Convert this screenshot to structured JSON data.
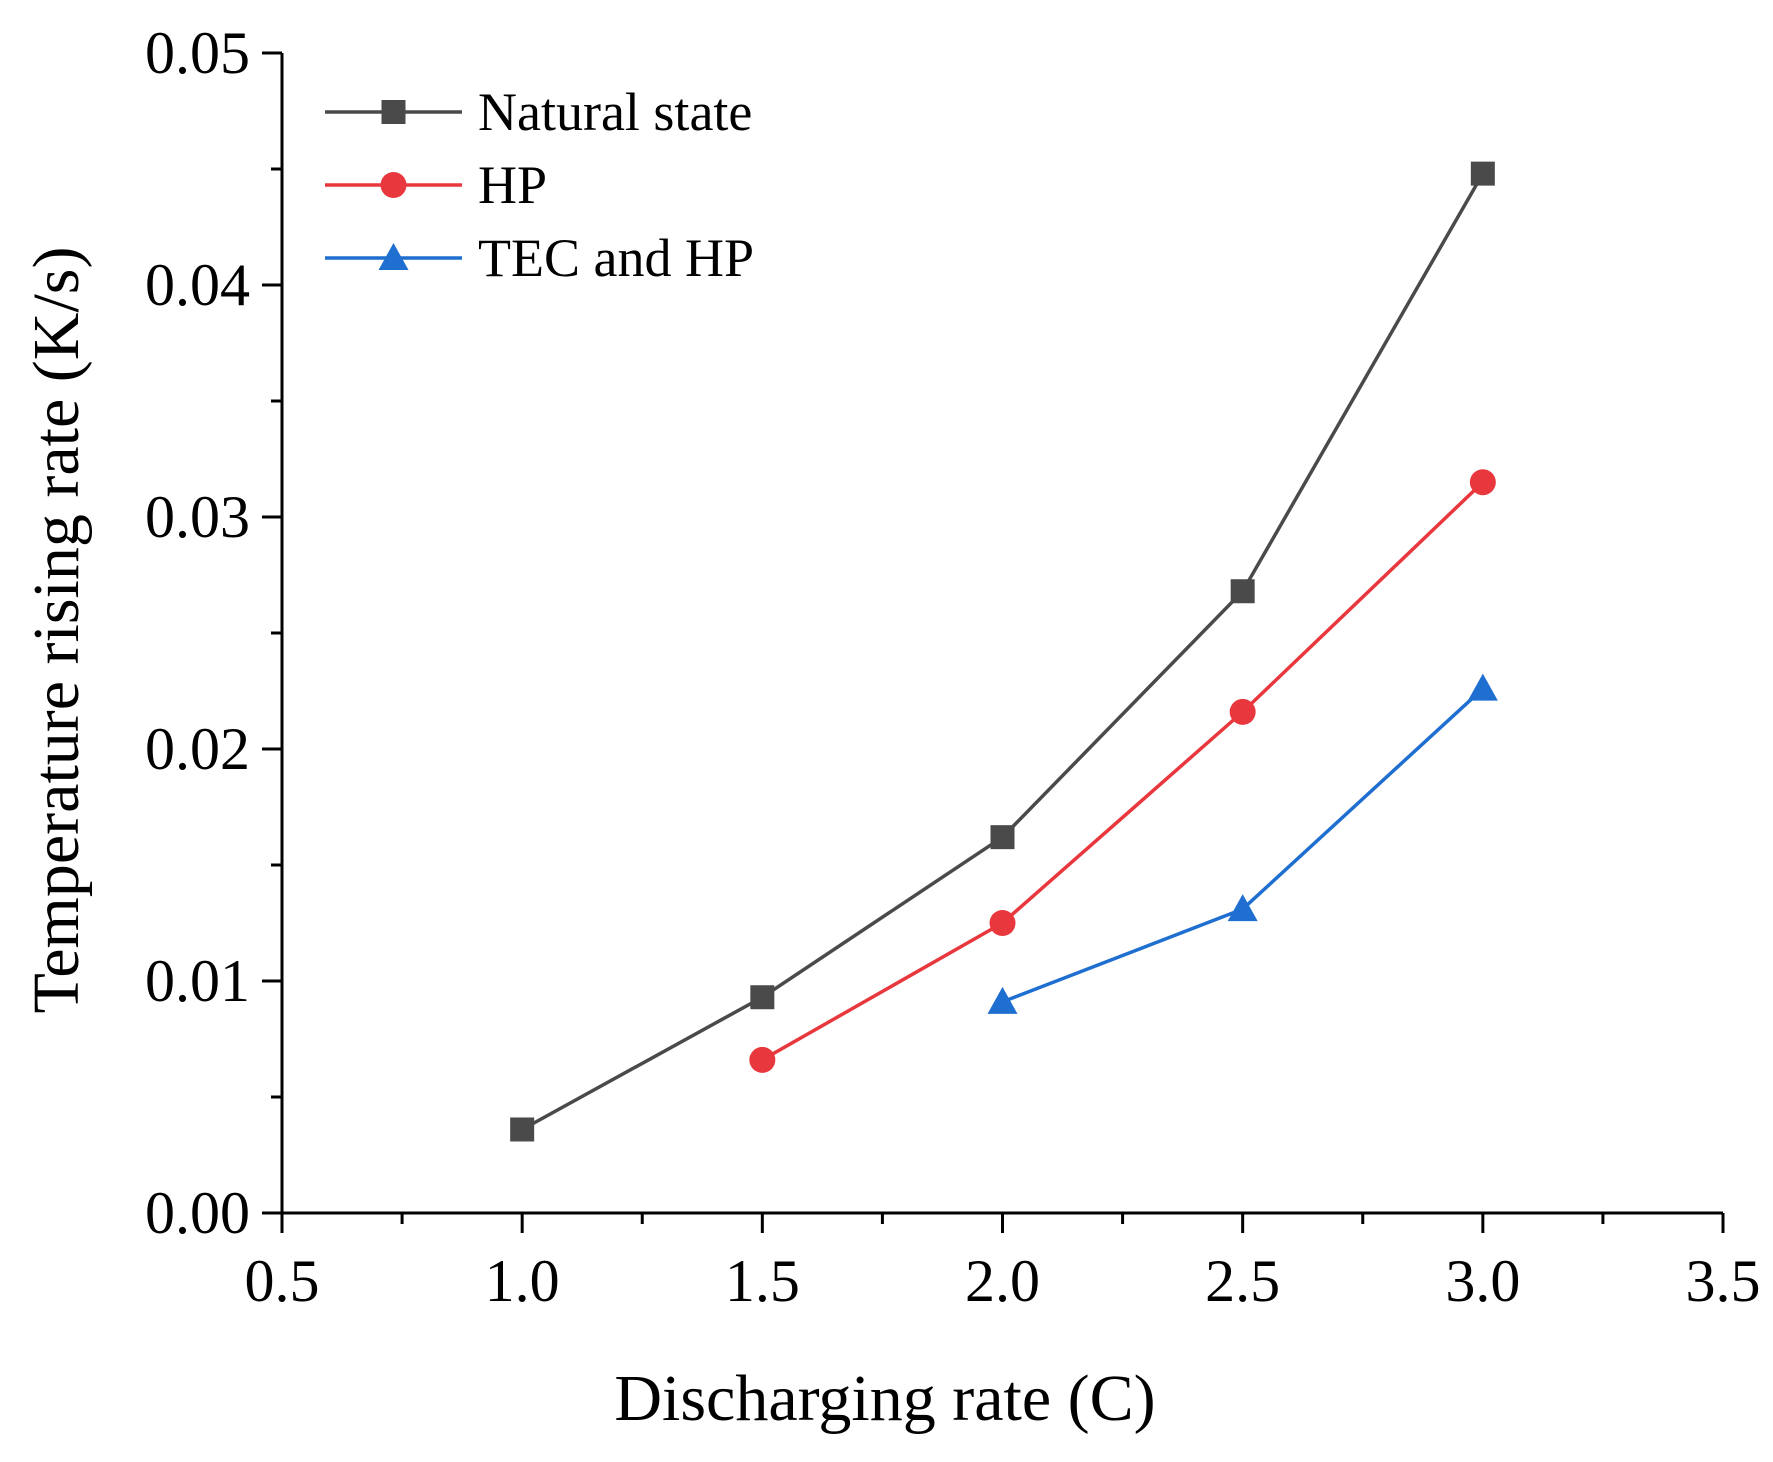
{
  "chart_data": {
    "type": "line",
    "title": "",
    "xlabel": "Discharging rate (C)",
    "ylabel": "Temperature rising rate (K/s)",
    "xlim": [
      0.5,
      3.5
    ],
    "ylim": [
      0.0,
      0.05
    ],
    "x_ticks": [
      "0.5",
      "1.0",
      "1.5",
      "2.0",
      "2.5",
      "3.0",
      "3.5"
    ],
    "y_ticks": [
      "0.00",
      "0.01",
      "0.02",
      "0.03",
      "0.04",
      "0.05"
    ],
    "grid": false,
    "legend_position": "top-left",
    "series": [
      {
        "name": "Natural state",
        "color": "#4a4a4a",
        "marker": "square",
        "x": [
          1.0,
          1.5,
          2.0,
          2.5,
          3.0
        ],
        "y": [
          0.0036,
          0.0093,
          0.0162,
          0.0268,
          0.0448
        ]
      },
      {
        "name": "HP",
        "color": "#e8383d",
        "marker": "circle",
        "x": [
          1.5,
          2.0,
          2.5,
          3.0
        ],
        "y": [
          0.0066,
          0.0125,
          0.0216,
          0.0315
        ]
      },
      {
        "name": "TEC and HP",
        "color": "#1f6fd1",
        "marker": "triangle",
        "x": [
          2.0,
          2.5,
          3.0
        ],
        "y": [
          0.0091,
          0.0131,
          0.0226
        ]
      }
    ]
  }
}
